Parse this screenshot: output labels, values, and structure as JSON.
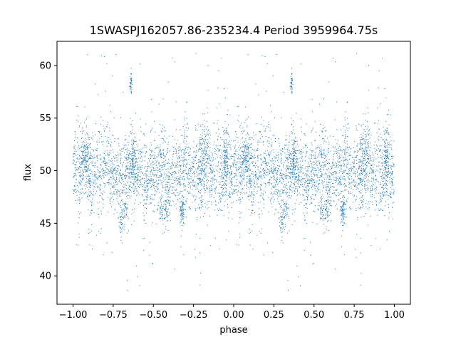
{
  "chart_data": {
    "type": "scatter",
    "title": "1SWASPJ162057.86-235234.4 Period 3959964.75s",
    "xlabel": "phase",
    "ylabel": "flux",
    "xlim": [
      -1.1,
      1.1
    ],
    "ylim": [
      37.3,
      62.3
    ],
    "x_ticks": [
      -1.0,
      -0.75,
      -0.5,
      -0.25,
      0.0,
      0.25,
      0.5,
      0.75,
      1.0
    ],
    "x_tick_labels": [
      "−1.00",
      "−0.75",
      "−0.50",
      "−0.25",
      "0.00",
      "0.25",
      "0.50",
      "0.75",
      "1.00"
    ],
    "y_ticks": [
      40,
      45,
      50,
      55,
      60
    ],
    "y_tick_labels": [
      "40",
      "45",
      "50",
      "55",
      "60"
    ],
    "grid": false,
    "legend": "none",
    "marker_color": "#1f77b4",
    "series": [
      {
        "phase_range": [
          -1.0,
          1.0
        ],
        "symmetric_about_zero": true,
        "baseline_flux": 49.8,
        "core_spread": 2.2,
        "flux_range_observed": [
          38.5,
          61.2
        ],
        "high_flux_clumps": [
          {
            "x": -0.64,
            "y": 58.3
          },
          {
            "x": 0.36,
            "y": 58.3
          }
        ],
        "low_flux_dips": [
          {
            "x": -0.7,
            "y": 45.2
          },
          {
            "x": -0.32,
            "y": 46.0
          },
          {
            "x": -0.45,
            "y": 46.2
          },
          {
            "x": 0.33,
            "y": 45.9
          },
          {
            "x": 0.58,
            "y": 46.0
          },
          {
            "x": 0.68,
            "y": 46.0
          }
        ],
        "bright_bands": [
          {
            "x": -0.93,
            "y_top": 53.5
          },
          {
            "x": -0.62,
            "y_top": 52.5
          },
          {
            "x": -0.18,
            "y_top": 53.8
          },
          {
            "x": -0.05,
            "y_top": 53.5
          },
          {
            "x": 0.1,
            "y_top": 53.0
          },
          {
            "x": 0.37,
            "y_top": 52.5
          },
          {
            "x": 0.8,
            "y_top": 53.8
          },
          {
            "x": 0.95,
            "y_top": 53.5
          }
        ]
      }
    ]
  }
}
